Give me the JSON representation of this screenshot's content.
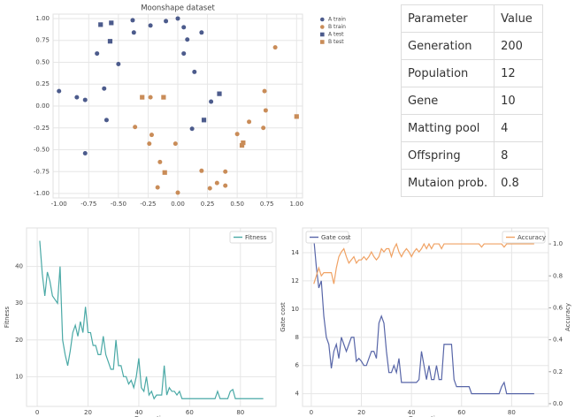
{
  "chart_data": [
    {
      "type": "scatter",
      "title": "Moonshape dataset",
      "legend": "outside right",
      "grid": true,
      "xlim": [
        -1.05,
        1.05
      ],
      "ylim": [
        -1.05,
        1.05
      ],
      "xticks": [
        {
          "value": -1,
          "label": "-1.00"
        },
        {
          "value": -0.75,
          "label": "-0.75"
        },
        {
          "value": -0.5,
          "label": "-0.50"
        },
        {
          "value": -0.25,
          "label": "-0.25"
        },
        {
          "value": 0,
          "label": "0.00"
        },
        {
          "value": 0.25,
          "label": "0.25"
        },
        {
          "value": 0.5,
          "label": "0.50"
        },
        {
          "value": 0.75,
          "label": "0.75"
        },
        {
          "value": 1,
          "label": "1.00"
        }
      ],
      "yticks": [
        {
          "value": -1,
          "label": "-1.00"
        },
        {
          "value": -0.75,
          "label": "-0.75"
        },
        {
          "value": -0.5,
          "label": "-0.50"
        },
        {
          "value": -0.25,
          "label": "-0.25"
        },
        {
          "value": 0,
          "label": "0.00"
        },
        {
          "value": 0.25,
          "label": "0.25"
        },
        {
          "value": 0.5,
          "label": "0.50"
        },
        {
          "value": 0.75,
          "label": "0.75"
        },
        {
          "value": 1,
          "label": "1.00"
        }
      ],
      "series": [
        {
          "name": "A train",
          "color": "#4c5b8c",
          "marker": "circle",
          "x": [
            -1.0,
            -0.85,
            -0.78,
            -0.68,
            -0.62,
            -0.6,
            -0.5,
            -0.38,
            -0.37,
            -0.23,
            -0.1,
            0.0,
            0.05,
            0.08,
            0.05,
            0.14,
            0.2,
            0.28,
            0.12,
            -0.78
          ],
          "y": [
            0.17,
            0.1,
            0.07,
            0.6,
            0.2,
            -0.16,
            0.48,
            0.98,
            0.84,
            0.92,
            0.97,
            1.0,
            0.9,
            0.76,
            0.6,
            0.39,
            0.84,
            0.05,
            -0.26,
            -0.54
          ]
        },
        {
          "name": "B train",
          "color": "#c98c58",
          "marker": "circle",
          "x": [
            -0.36,
            -0.24,
            -0.22,
            -0.15,
            -0.17,
            -0.02,
            0.0,
            0.2,
            0.27,
            0.33,
            0.4,
            0.4,
            0.5,
            0.6,
            0.72,
            0.74,
            0.73,
            0.82,
            -0.23
          ],
          "y": [
            -0.24,
            -0.43,
            -0.33,
            -0.64,
            -0.93,
            -0.43,
            -0.99,
            -0.74,
            -0.94,
            -0.88,
            -0.75,
            -0.91,
            -0.32,
            -0.18,
            -0.25,
            -0.05,
            0.17,
            0.67,
            0.1
          ]
        },
        {
          "name": "A test",
          "color": "#4c5b8c",
          "marker": "square",
          "x": [
            -0.65,
            -0.56,
            -0.57,
            0.35,
            0.22
          ],
          "y": [
            0.93,
            0.95,
            0.74,
            0.14,
            -0.16
          ]
        },
        {
          "name": "B test",
          "color": "#c98c58",
          "marker": "square",
          "x": [
            -0.3,
            -0.12,
            -0.11,
            0.55,
            0.54,
            1.0
          ],
          "y": [
            0.1,
            0.1,
            -0.76,
            -0.42,
            -0.45,
            -0.12
          ]
        }
      ]
    },
    {
      "type": "line",
      "xlabel": "Generation",
      "ylabel": "Fitness",
      "legend": "upper right",
      "grid": true,
      "xlim": [
        -4.2,
        94
      ],
      "ylim": [
        1.9,
        50.5
      ],
      "xticks": [
        0,
        20,
        40,
        60,
        80
      ],
      "yticks": [
        10,
        20,
        30,
        40
      ],
      "x": [
        1,
        2,
        3,
        4,
        5,
        6,
        7,
        8,
        9,
        10,
        11,
        12,
        13,
        14,
        15,
        16,
        17,
        18,
        19,
        20,
        21,
        22,
        23,
        24,
        25,
        26,
        27,
        28,
        29,
        30,
        31,
        32,
        33,
        34,
        35,
        36,
        37,
        38,
        39,
        40,
        41,
        42,
        43,
        44,
        45,
        46,
        47,
        48,
        49,
        50,
        51,
        52,
        53,
        54,
        55,
        56,
        57,
        58,
        59,
        60,
        61,
        62,
        63,
        64,
        65,
        66,
        67,
        68,
        69,
        70,
        71,
        72,
        73,
        74,
        75,
        76,
        77,
        78,
        79,
        80,
        81,
        82,
        83,
        84,
        85,
        86,
        87,
        88,
        89
      ],
      "series": [
        {
          "name": "Fitness",
          "color": "#4aa9a6",
          "values": [
            47,
            38,
            32,
            38.5,
            36,
            32,
            31,
            30,
            40,
            20,
            16,
            13,
            17,
            22,
            24,
            21,
            25,
            22,
            29,
            22,
            22,
            18.5,
            18.5,
            16,
            16,
            21,
            16,
            14,
            12,
            12,
            20,
            13,
            13,
            10,
            10,
            8,
            9,
            7,
            10,
            15,
            7,
            6,
            10,
            5,
            6,
            4,
            5,
            5,
            5,
            13,
            5,
            7,
            6,
            6,
            5,
            6,
            4,
            4,
            4,
            4,
            4,
            4,
            4,
            4,
            4,
            4,
            4,
            4,
            4,
            4,
            6,
            4,
            4,
            4,
            4,
            6,
            6.5,
            4,
            4,
            4,
            4,
            4,
            4,
            4,
            4,
            4,
            4,
            4,
            4
          ]
        }
      ]
    },
    {
      "type": "line",
      "xlabel": "Generation",
      "ylabel": "Gate cost",
      "y2label": "Accuracy",
      "legend": "upper left",
      "y2legend": "upper right",
      "grid": true,
      "xlim": [
        -3.5,
        94.7
      ],
      "ylim": [
        3.1,
        15.75
      ],
      "y2lim": [
        -0.017,
        1.1
      ],
      "xticks": [
        0,
        20,
        40,
        60,
        80
      ],
      "yticks": [
        4,
        6,
        8,
        10,
        12,
        14
      ],
      "y2ticks": [
        {
          "value": 0,
          "label": "0.0"
        },
        0.2,
        0.4,
        0.6,
        0.8,
        {
          "value": 1,
          "label": "1.0"
        }
      ],
      "x": [
        1,
        2,
        3,
        4,
        5,
        6,
        7,
        8,
        9,
        10,
        11,
        12,
        13,
        14,
        15,
        16,
        17,
        18,
        19,
        20,
        21,
        22,
        23,
        24,
        25,
        26,
        27,
        28,
        29,
        30,
        31,
        32,
        33,
        34,
        35,
        36,
        37,
        38,
        39,
        40,
        41,
        42,
        43,
        44,
        45,
        46,
        47,
        48,
        49,
        50,
        51,
        52,
        53,
        54,
        55,
        56,
        57,
        58,
        59,
        60,
        61,
        62,
        63,
        64,
        65,
        66,
        67,
        68,
        69,
        70,
        71,
        72,
        73,
        74,
        75,
        76,
        77,
        78,
        79,
        80,
        81,
        82,
        83,
        84,
        85,
        86,
        87,
        88,
        89
      ],
      "series": [
        {
          "name": "Gate cost",
          "color": "#5866a8",
          "values": [
            15,
            13,
            11.5,
            12,
            9.5,
            8,
            7.5,
            5.8,
            7,
            7.5,
            6.5,
            8,
            7.5,
            7,
            7.5,
            8,
            8,
            6.3,
            6.5,
            6.3,
            6,
            6,
            6.5,
            7,
            7,
            6.5,
            9,
            9.5,
            9,
            7,
            5.5,
            5.5,
            6,
            5.5,
            6.5,
            4.8,
            4.8,
            4.8,
            4.8,
            4.8,
            4.8,
            4.8,
            5,
            7,
            6,
            5,
            6,
            5,
            5,
            6,
            5,
            5,
            7.5,
            7.5,
            7.5,
            7.5,
            5,
            4.5,
            4.5,
            4.5,
            4.5,
            4.5,
            4.5,
            4,
            4,
            4,
            4,
            4,
            4,
            4,
            4,
            4,
            4,
            4,
            4,
            4.5,
            4.8,
            4,
            4,
            4,
            4,
            4,
            4,
            4,
            4,
            4,
            4,
            4,
            4
          ]
        },
        {
          "name": "Accuracy",
          "color": "#f0a264",
          "axis": "y2",
          "values": [
            0.75,
            0.8,
            0.85,
            0.8,
            0.82,
            0.82,
            0.82,
            0.82,
            0.75,
            0.85,
            0.92,
            0.95,
            0.97,
            0.92,
            0.88,
            0.9,
            0.92,
            0.88,
            0.9,
            0.9,
            0.92,
            0.9,
            0.92,
            0.95,
            0.92,
            0.9,
            0.92,
            0.97,
            0.95,
            0.97,
            0.97,
            0.92,
            0.97,
            1.0,
            0.95,
            0.92,
            0.95,
            0.97,
            0.95,
            0.92,
            0.95,
            0.97,
            0.95,
            0.97,
            1.0,
            0.97,
            1.0,
            0.97,
            1.0,
            1.0,
            1.0,
            0.97,
            1.0,
            1.0,
            1.0,
            1.0,
            1.0,
            1.0,
            1.0,
            1.0,
            1,
            1,
            1,
            1,
            1,
            1,
            1,
            0.98,
            1,
            1,
            1,
            1,
            1,
            1,
            1,
            1,
            0.98,
            1,
            1,
            1,
            1,
            1,
            1,
            1,
            1,
            1,
            1,
            1,
            1
          ]
        }
      ]
    }
  ],
  "table": {
    "header": [
      "Parameter",
      "Value"
    ],
    "rows": [
      [
        "Generation",
        200
      ],
      [
        "Population",
        12
      ],
      [
        "Gene",
        10
      ],
      [
        "Matting pool",
        4
      ],
      [
        "Offspring",
        8
      ],
      [
        "Mutaion prob.",
        0.8
      ]
    ]
  }
}
